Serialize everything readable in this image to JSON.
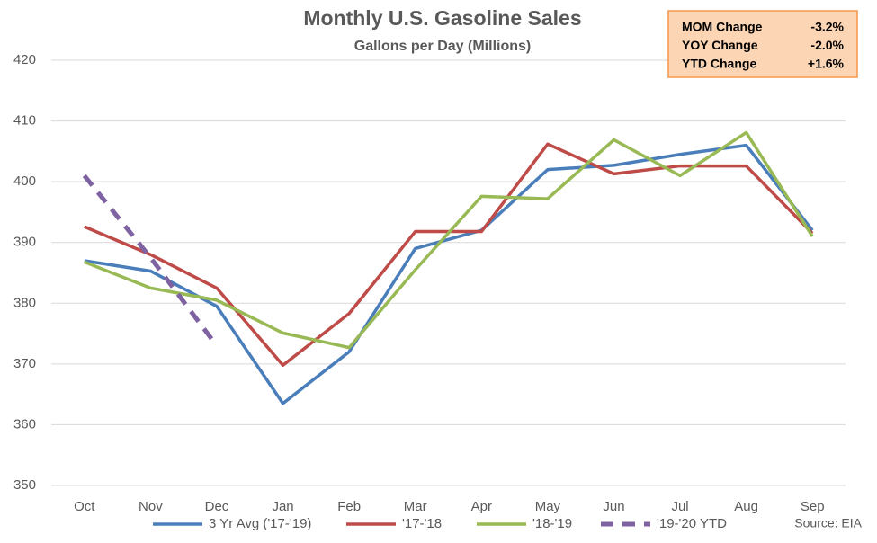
{
  "chart_data": {
    "type": "line",
    "title": "Monthly U.S. Gasoline Sales",
    "subtitle": "Gallons per Day (Millions)",
    "source": "Source: EIA",
    "categories": [
      "Oct",
      "Nov",
      "Dec",
      "Jan",
      "Feb",
      "Mar",
      "Apr",
      "May",
      "Jun",
      "Jul",
      "Aug",
      "Sep"
    ],
    "series": [
      {
        "name": "3 Yr Avg ('17-'19)",
        "color": "#4a7ebb",
        "values": [
          387,
          385.3,
          379.5,
          363.5,
          372,
          389,
          392,
          402,
          402.7,
          404.5,
          406,
          392
        ]
      },
      {
        "name": "'17-'18",
        "color": "#be4b48",
        "values": [
          392.6,
          388,
          382.5,
          369.8,
          378.3,
          391.8,
          391.8,
          406.2,
          401.3,
          402.6,
          402.6,
          391.5
        ]
      },
      {
        "name": "'18-'19",
        "color": "#98b954",
        "values": [
          386.8,
          382.5,
          380.5,
          375.1,
          372.7,
          385.5,
          397.6,
          397.2,
          406.9,
          401,
          408.1,
          391
        ]
      },
      {
        "name": "'19-'20 YTD",
        "color": "#7f62a2",
        "dashed": true,
        "values": [
          401,
          387.5,
          373,
          null,
          null,
          null,
          null,
          null,
          null,
          null,
          null,
          null
        ]
      }
    ],
    "ylim": [
      350,
      420
    ],
    "yticks": [
      350,
      360,
      370,
      380,
      390,
      400,
      410,
      420
    ],
    "grid": true,
    "legend": "bottom",
    "info_box": [
      {
        "label": "MOM Change",
        "value": "-3.2%"
      },
      {
        "label": "YOY Change",
        "value": "-2.0%"
      },
      {
        "label": "YTD Change",
        "value": "+1.6%"
      }
    ]
  }
}
